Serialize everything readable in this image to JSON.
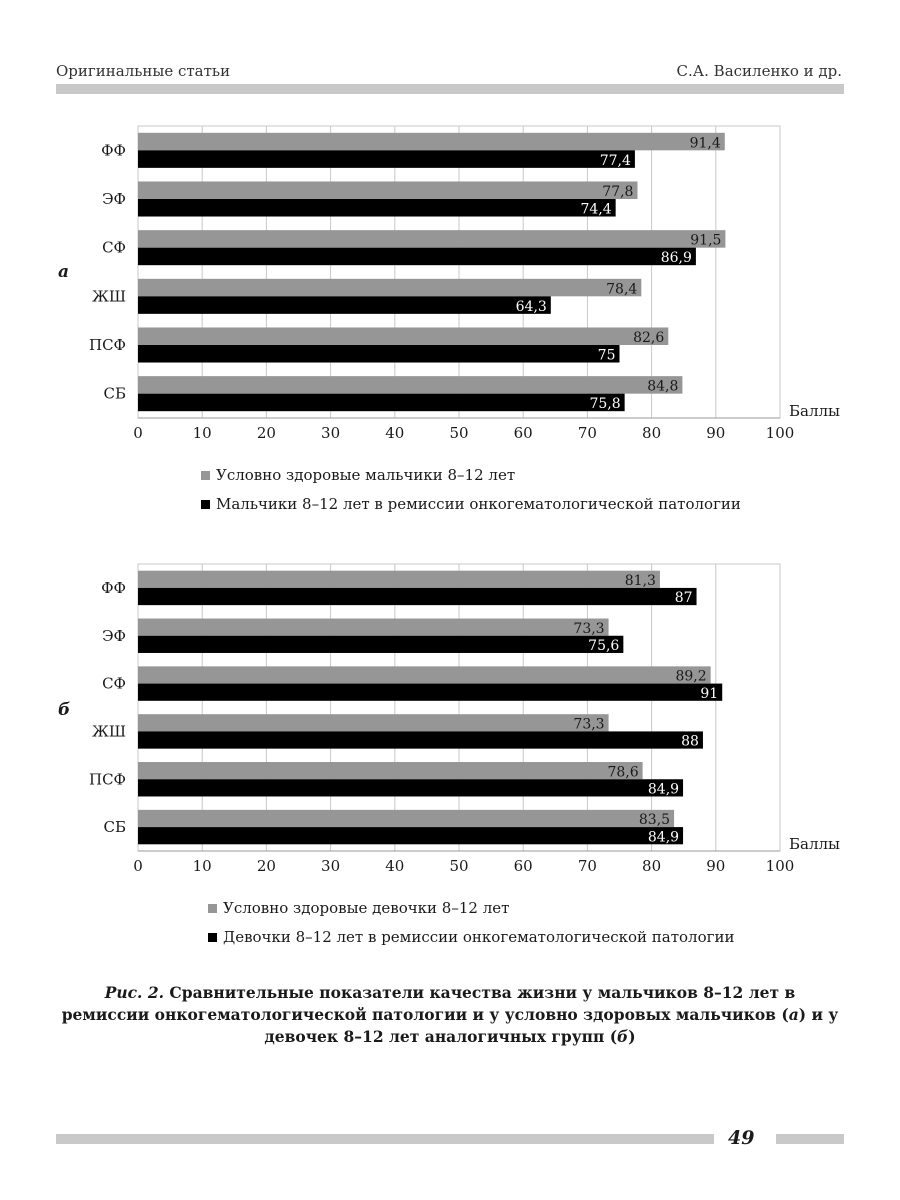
{
  "header": {
    "left": "Оригинальные статьи",
    "right": "С.А. Василенко и др."
  },
  "caption": {
    "fig_label": "Рис. 2.",
    "text": " Сравнительные показатели качества жизни у мальчиков 8–12 лет в ремиссии онкогематологической патологии и у условно здоровых мальчиков (",
    "a": "а",
    "mid": ") и у девочек 8–12 лет аналогичных групп (",
    "b": "б",
    "end": ")"
  },
  "page_number": "49",
  "chart_data": [
    {
      "type": "bar",
      "orientation": "horizontal",
      "panel_label": "а",
      "categories": [
        "ФФ",
        "ЭФ",
        "СФ",
        "ЖШ",
        "ПСФ",
        "СБ"
      ],
      "series": [
        {
          "name": "Условно здоровые мальчики 8–12 лет",
          "color": "#969696",
          "values": [
            91.4,
            77.8,
            91.5,
            78.4,
            82.6,
            84.8
          ],
          "labels": [
            "91,4",
            "77,8",
            "91,5",
            "78,4",
            "82,6",
            "84,8"
          ]
        },
        {
          "name": "Мальчики 8–12 лет в ремиссии онкогематологической патологии",
          "color": "#000000",
          "values": [
            77.4,
            74.4,
            86.9,
            64.3,
            75,
            75.8
          ],
          "labels": [
            "77,4",
            "74,4",
            "86,9",
            "64,3",
            "75",
            "75,8"
          ]
        }
      ],
      "xlabel": "Баллы",
      "xlim": [
        0,
        100
      ],
      "ticks": [
        "0",
        "10",
        "20",
        "30",
        "40",
        "50",
        "60",
        "70",
        "80",
        "90",
        "100"
      ],
      "grid": true,
      "legend_position": "bottom"
    },
    {
      "type": "bar",
      "orientation": "horizontal",
      "panel_label": "б",
      "categories": [
        "ФФ",
        "ЭФ",
        "СФ",
        "ЖШ",
        "ПСФ",
        "СБ"
      ],
      "series": [
        {
          "name": "Условно здоровые девочки 8–12 лет",
          "color": "#969696",
          "values": [
            81.3,
            73.3,
            89.2,
            73.3,
            78.6,
            83.5
          ],
          "labels": [
            "81,3",
            "73,3",
            "89,2",
            "73,3",
            "78,6",
            "83,5"
          ]
        },
        {
          "name": "Девочки 8–12 лет в ремиссии онкогематологической патологии",
          "color": "#000000",
          "values": [
            87,
            75.6,
            91,
            88,
            84.9,
            84.9
          ],
          "labels": [
            "87",
            "75,6",
            "91",
            "88",
            "84,9",
            "84,9"
          ]
        }
      ],
      "xlabel": "Баллы",
      "xlim": [
        0,
        100
      ],
      "ticks": [
        "0",
        "10",
        "20",
        "30",
        "40",
        "50",
        "60",
        "70",
        "80",
        "90",
        "100"
      ],
      "grid": true,
      "legend_position": "bottom"
    }
  ]
}
